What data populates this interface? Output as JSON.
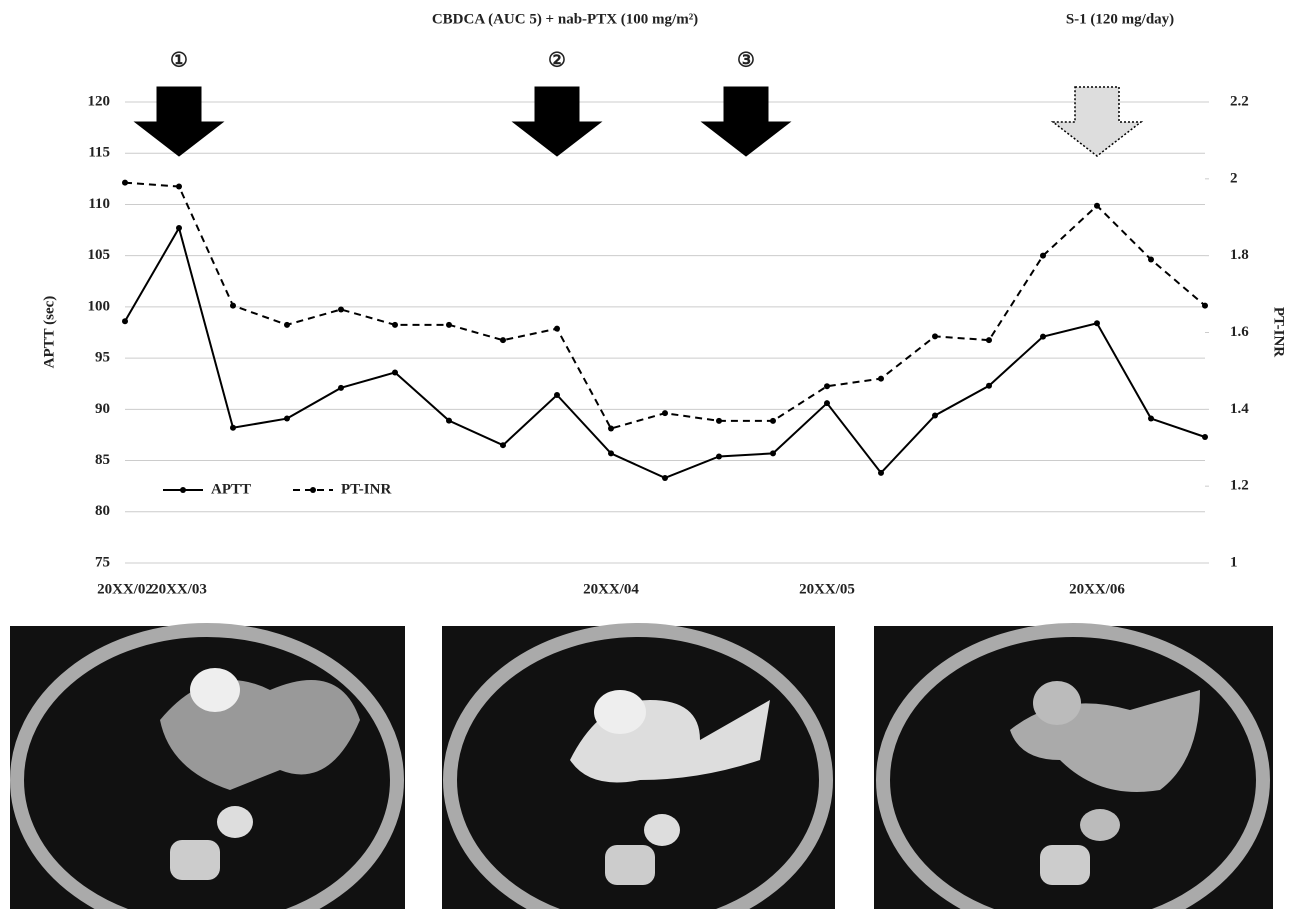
{
  "chart_data": {
    "type": "line",
    "annotations": [
      "CBDCA (AUC 5) + nab-PTX (100 mg/m²)",
      "S-1 (120 mg/day)",
      "①",
      "②",
      "③"
    ],
    "categories": [
      "20XX/02",
      "20XX/03",
      null,
      null,
      null,
      null,
      null,
      null,
      null,
      "20XX/04",
      null,
      null,
      null,
      "20XX/05",
      null,
      null,
      null,
      null,
      "20XX/06",
      null,
      null
    ],
    "series": [
      {
        "name": "APTT",
        "color": "#000000",
        "line_style": "solid",
        "values": [
          98.6,
          107.7,
          88.2,
          89.1,
          92.1,
          93.6,
          88.9,
          86.5,
          91.4,
          85.7,
          83.3,
          85.4,
          85.7,
          90.6,
          83.8,
          89.4,
          92.3,
          97.1,
          98.4,
          89.1,
          87.3
        ]
      },
      {
        "name": "PT-INR",
        "color": "#000000",
        "line_style": "dashed",
        "axis": "y2",
        "values": [
          1.99,
          1.98,
          1.67,
          1.62,
          1.66,
          1.62,
          1.62,
          1.58,
          1.61,
          1.35,
          1.39,
          1.37,
          1.37,
          1.46,
          1.48,
          1.59,
          1.58,
          1.8,
          1.93,
          1.79,
          1.67
        ]
      }
    ],
    "ylabel": "APTT (sec)",
    "y2label": "PT-INR",
    "ylim": [
      75,
      120
    ],
    "yticks": [
      75,
      80,
      85,
      90,
      95,
      100,
      105,
      110,
      115,
      120
    ],
    "y2lim": [
      1,
      2.2
    ],
    "y2ticks": [
      1,
      1.2,
      1.4,
      1.6,
      1.8,
      2,
      2.2
    ],
    "grid": true,
    "legend": "lower left"
  }
}
